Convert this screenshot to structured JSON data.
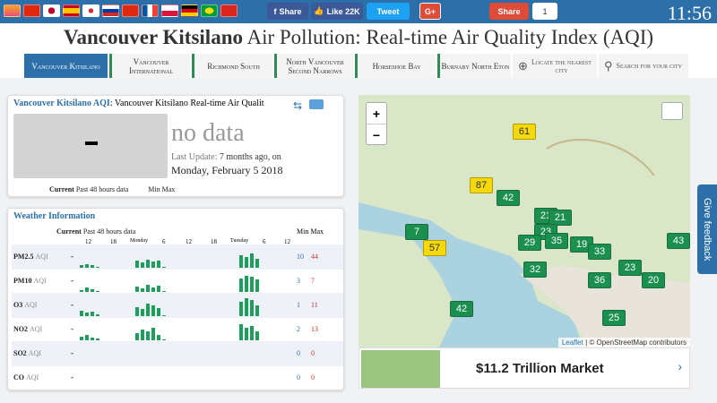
{
  "topbar": {
    "clock": "11:56",
    "share_label": "Share",
    "like_label": "Like 22K",
    "tweet_label": "Tweet",
    "gplus_label": "G+",
    "share2_label": "Share",
    "count": "1"
  },
  "title": {
    "bold": "Vancouver Kitsilano",
    "rest": " Air Pollution: Real-time Air Quality Index (AQI)"
  },
  "nav": [
    {
      "label": "Vancouver Kitsilano",
      "active": true
    },
    {
      "label": "Vancouver International"
    },
    {
      "label": "Richmond South"
    },
    {
      "label": "North Vancouver Second Narrows"
    },
    {
      "label": "Horseshoe Bay"
    },
    {
      "label": "Burnaby North Eton"
    }
  ],
  "nav_tools": {
    "locate": "Locate the nearest city",
    "search": "Search for your city"
  },
  "aqi_panel": {
    "heading_link": "Vancouver Kitsilano AQI",
    "heading_sub": ": Vancouver Kitsilano Real-time Air Qualit",
    "value": "-",
    "status": "no data",
    "last_update_label": "Last Update:",
    "last_update_value": "7 months ago, on",
    "date": "Monday, February 5 2018",
    "foot_current": "Current",
    "foot_past": "Past 48 hours data",
    "foot_minmax": "Min Max"
  },
  "weather": {
    "title": "Weather Information",
    "header_current": "Current",
    "header_past": "Past 48 hours data",
    "header_minmax": "Min Max",
    "time_ticks": [
      "12",
      "18",
      "Monday",
      "6",
      "12",
      "18",
      "Tuesday",
      "6",
      "12"
    ],
    "rows": [
      {
        "name": "PM2.5",
        "unit": "AQI",
        "current": "-",
        "min": "10",
        "max": "44"
      },
      {
        "name": "PM10",
        "unit": "AQI",
        "current": "-",
        "min": "3",
        "max": "7"
      },
      {
        "name": "O3",
        "unit": "AQI",
        "current": "-",
        "min": "1",
        "max": "11"
      },
      {
        "name": "NO2",
        "unit": "AQI",
        "current": "-",
        "min": "2",
        "max": "13"
      },
      {
        "name": "SO2",
        "unit": "AQI",
        "current": "-",
        "min": "0",
        "max": "0"
      },
      {
        "name": "CO",
        "unit": "AQI",
        "current": "-",
        "min": "0",
        "max": "0"
      }
    ]
  },
  "map": {
    "zoom_in": "+",
    "zoom_out": "−",
    "attribution_leaflet": "Leaflet",
    "attribution_rest": " | © OpenStreetMap contributors",
    "markers": [
      {
        "v": "61",
        "c": "y"
      },
      {
        "v": "87",
        "c": "y"
      },
      {
        "v": "42",
        "c": "g"
      },
      {
        "v": "7",
        "c": "g"
      },
      {
        "v": "57",
        "c": "y"
      },
      {
        "v": "21",
        "c": "g"
      },
      {
        "v": "21",
        "c": "g"
      },
      {
        "v": "23",
        "c": "g"
      },
      {
        "v": "29",
        "c": "g"
      },
      {
        "v": "35",
        "c": "g"
      },
      {
        "v": "19",
        "c": "g"
      },
      {
        "v": "33",
        "c": "g"
      },
      {
        "v": "32",
        "c": "g"
      },
      {
        "v": "43",
        "c": "g"
      },
      {
        "v": "23",
        "c": "g"
      },
      {
        "v": "36",
        "c": "g"
      },
      {
        "v": "20",
        "c": "g"
      },
      {
        "v": "42",
        "c": "g"
      },
      {
        "v": "25",
        "c": "g"
      }
    ]
  },
  "ad": {
    "text": "$11.2 Trillion Market"
  },
  "feedback": "Give feedback"
}
